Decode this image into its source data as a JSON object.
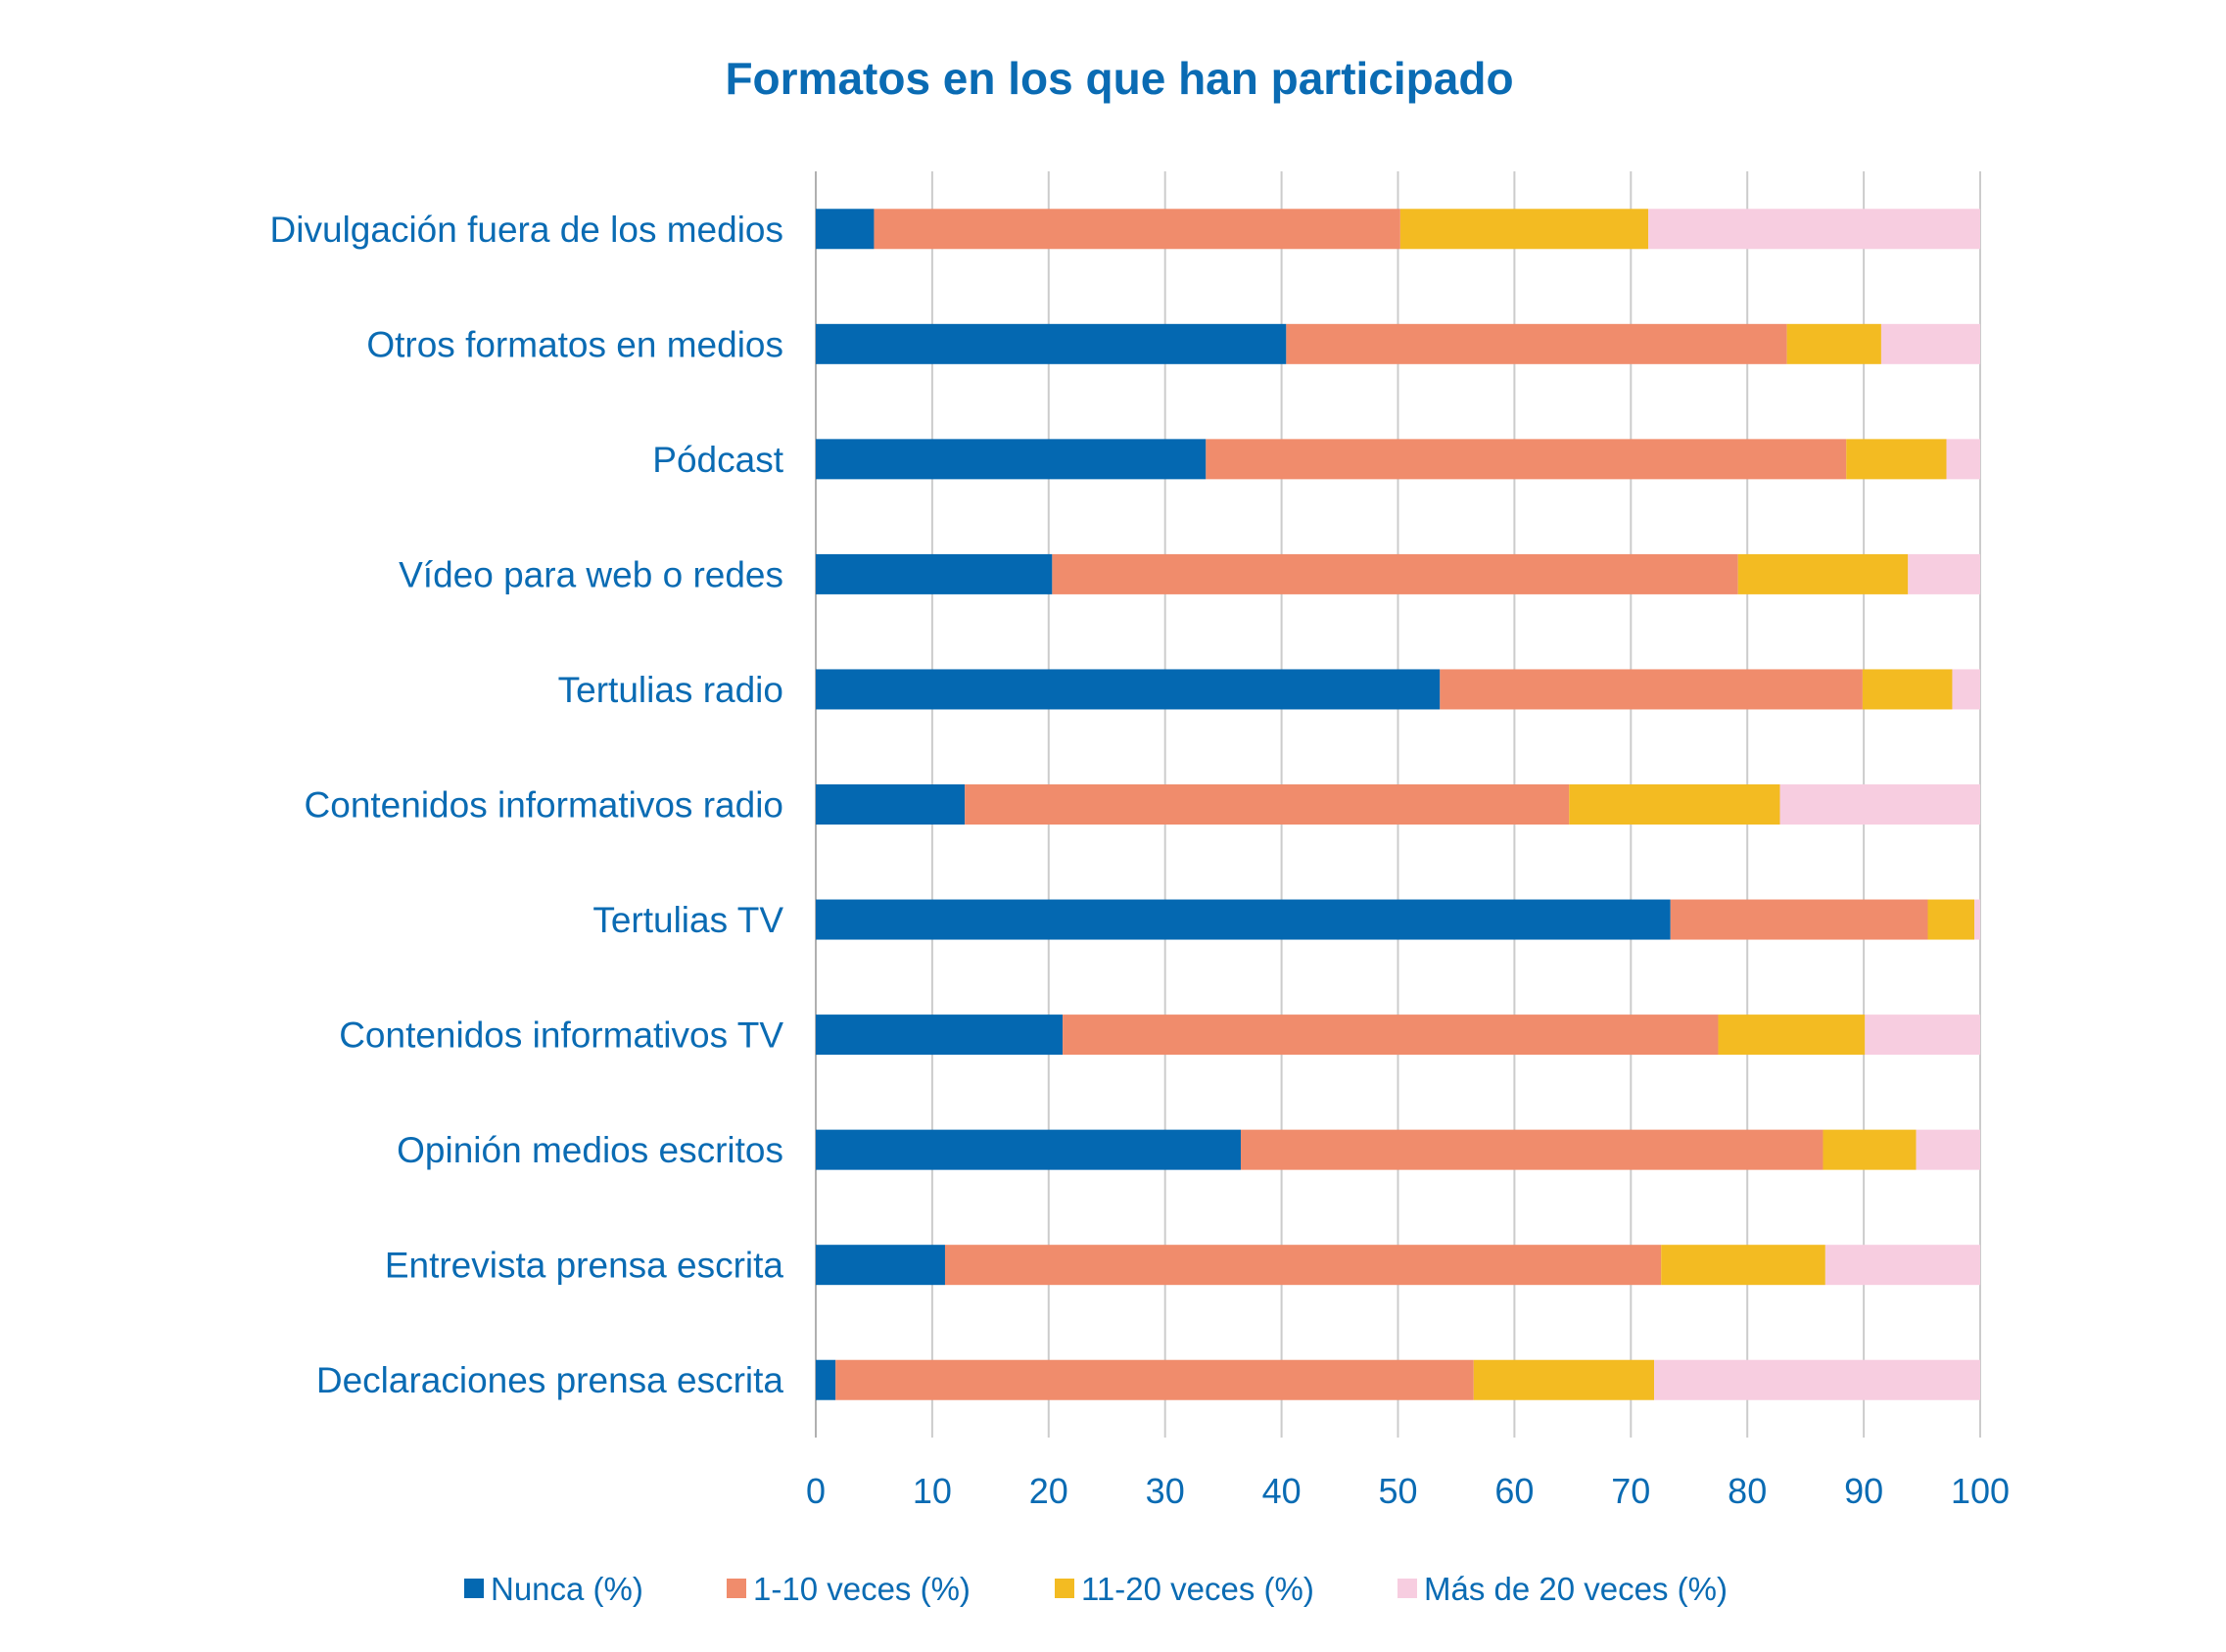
{
  "chart_data": {
    "type": "bar",
    "orientation": "horizontal",
    "stacked": true,
    "title": "Formatos en los que han participado",
    "xlabel": "",
    "ylabel": "",
    "xlim": [
      0,
      100
    ],
    "xticks": [
      "0",
      "10",
      "20",
      "30",
      "40",
      "50",
      "60",
      "70",
      "80",
      "90",
      "100"
    ],
    "grid": "vertical",
    "legend": "bottom",
    "categories": [
      "Divulgación fuera de los medios",
      "Otros formatos en medios",
      "Pódcast",
      "Vídeo para web o redes",
      "Tertulias radio",
      "Contenidos informativos radio",
      "Tertulias TV",
      "Contenidos informativos TV",
      "Opinión medios escritos",
      "Entrevista prensa escrita",
      "Declaraciones prensa escrita"
    ],
    "series": [
      {
        "name": "Nunca (%)",
        "color": "#0468b1",
        "values": [
          5.0,
          40.4,
          33.5,
          20.3,
          53.6,
          12.8,
          73.4,
          21.2,
          36.5,
          11.1,
          1.7
        ]
      },
      {
        "name": "1-10 veces (%)",
        "color": "#f08c6c",
        "values": [
          45.2,
          43.0,
          55.0,
          58.9,
          36.3,
          51.9,
          22.1,
          56.3,
          50.0,
          61.5,
          54.8
        ]
      },
      {
        "name": "11-20 veces (%)",
        "color": "#f3bb22",
        "values": [
          21.3,
          8.1,
          8.6,
          14.6,
          7.7,
          18.1,
          4.0,
          12.6,
          8.0,
          14.1,
          15.5
        ]
      },
      {
        "name": "Más de 20 veces (%)",
        "color": "#f7cde0",
        "values": [
          28.5,
          8.5,
          2.9,
          6.2,
          2.4,
          17.2,
          0.5,
          9.9,
          5.5,
          13.3,
          28.0
        ]
      }
    ]
  }
}
